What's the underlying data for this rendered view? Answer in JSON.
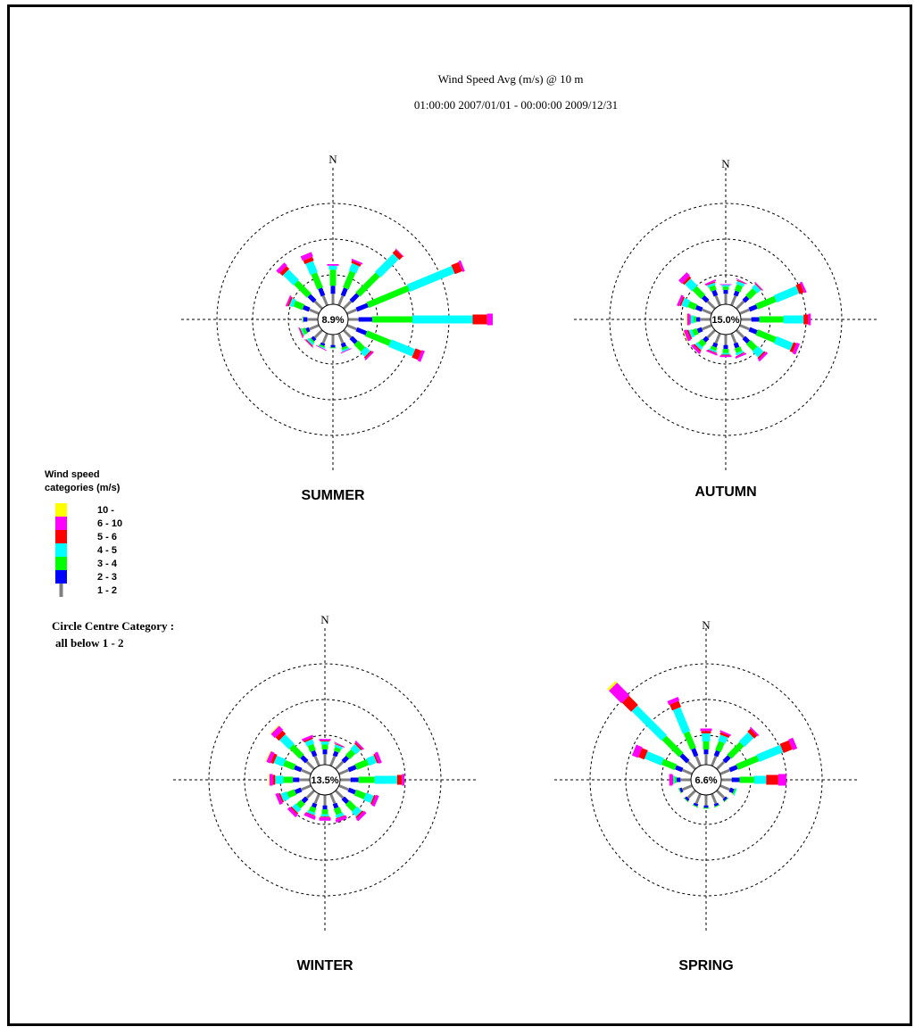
{
  "header": {
    "title": "Wind Speed Avg (m/s) @ 10 m",
    "period": "01:00:00 2007/01/01 - 00:00:00 2009/12/31"
  },
  "legend": {
    "title_line1": "Wind speed",
    "title_line2": "categories (m/s)",
    "items": [
      {
        "label": "10 -",
        "color": "#ffff00"
      },
      {
        "label": "6 - 10",
        "color": "#ff00ff"
      },
      {
        "label": "5 - 6",
        "color": "#ff0000"
      },
      {
        "label": "4 - 5",
        "color": "#00ffff"
      },
      {
        "label": "3 - 4",
        "color": "#00ff00"
      },
      {
        "label": "2 - 3",
        "color": "#0000ff"
      },
      {
        "label": "1 - 2",
        "color": "#808080"
      }
    ],
    "centre_line1": "Circle Centre Category :",
    "centre_line2": "all below 1 - 2"
  },
  "chart_data": [
    {
      "type": "wind-rose",
      "label": "SUMMER",
      "north_label": "N",
      "centre_text": "8.9%",
      "category_order": [
        "1 - 2",
        "2 - 3",
        "3 - 4",
        "4 - 5",
        "5 - 6",
        "6 - 10",
        "10 -"
      ],
      "directions_deg": [
        0,
        22.5,
        45,
        67.5,
        90,
        112.5,
        135,
        157.5,
        180,
        202.5,
        225,
        247.5,
        270,
        292.5,
        315,
        337.5
      ],
      "segments": [
        [
          1.3,
          1.0,
          2.0,
          0.5,
          0,
          0.2,
          0
        ],
        [
          1.3,
          1.0,
          2.2,
          1.0,
          0.3,
          0.2,
          0
        ],
        [
          1.3,
          1.2,
          3.5,
          3.2,
          0.6,
          0.1,
          0
        ],
        [
          1.3,
          1.5,
          5.5,
          6.0,
          1.0,
          0.3,
          0
        ],
        [
          1.3,
          1.7,
          5.0,
          7.5,
          1.8,
          0.7,
          0
        ],
        [
          1.3,
          1.3,
          3.2,
          3.2,
          0.8,
          0.4,
          0
        ],
        [
          1.3,
          0.9,
          1.2,
          0.8,
          0.2,
          0.2,
          0
        ],
        [
          1.3,
          0.5,
          0.3,
          0.2,
          0,
          0.1,
          0
        ],
        [
          1.3,
          0.3,
          0.1,
          0,
          0,
          0,
          0
        ],
        [
          1.3,
          0.3,
          0.2,
          0.1,
          0,
          0.1,
          0
        ],
        [
          1.3,
          0.4,
          0.2,
          0.3,
          0.1,
          0.1,
          0
        ],
        [
          1.3,
          0.4,
          0.4,
          0.2,
          0.1,
          0.1,
          0
        ],
        [
          1.3,
          0.5,
          0.1,
          0,
          0,
          0,
          0
        ],
        [
          1.3,
          0.8,
          1.2,
          0.5,
          0.2,
          0.2,
          0
        ],
        [
          1.3,
          1.0,
          2.3,
          1.8,
          0.5,
          0.5,
          0
        ],
        [
          1.3,
          1.0,
          2.0,
          1.5,
          0.5,
          0.6,
          0
        ]
      ]
    },
    {
      "type": "wind-rose",
      "label": "AUTUMN",
      "north_label": "N",
      "centre_text": "15.0%",
      "category_order": [
        "1 - 2",
        "2 - 3",
        "3 - 4",
        "4 - 5",
        "5 - 6",
        "6 - 10",
        "10 -"
      ],
      "directions_deg": [
        0,
        22.5,
        45,
        67.5,
        90,
        112.5,
        135,
        157.5,
        180,
        202.5,
        225,
        247.5,
        270,
        292.5,
        315,
        337.5
      ],
      "segments": [
        [
          1.3,
          0.5,
          0.4,
          0.2,
          0,
          0.1,
          0
        ],
        [
          1.3,
          0.6,
          0.8,
          0.4,
          0.1,
          0.1,
          0
        ],
        [
          1.3,
          0.7,
          1.2,
          0.6,
          0.1,
          0.1,
          0
        ],
        [
          1.3,
          1.0,
          2.5,
          3.0,
          0.6,
          0.3,
          0
        ],
        [
          1.3,
          1.0,
          3.0,
          2.5,
          0.6,
          0.3,
          0
        ],
        [
          1.3,
          1.0,
          2.5,
          2.2,
          0.4,
          0.4,
          0
        ],
        [
          1.3,
          0.8,
          1.2,
          1.0,
          0.2,
          0.3,
          0
        ],
        [
          1.3,
          0.6,
          0.6,
          0.3,
          0.1,
          0.2,
          0
        ],
        [
          1.3,
          0.5,
          0.5,
          0.2,
          0.1,
          0.2,
          0
        ],
        [
          1.3,
          0.5,
          0.4,
          0.2,
          0.1,
          0.2,
          0
        ],
        [
          1.3,
          0.6,
          0.7,
          0.4,
          0.2,
          0.3,
          0
        ],
        [
          1.3,
          0.6,
          0.6,
          0.4,
          0.2,
          0.4,
          0.1
        ],
        [
          1.3,
          0.5,
          0.3,
          0.4,
          0.1,
          0.3,
          0.1
        ],
        [
          1.3,
          0.8,
          1.0,
          0.8,
          0.2,
          0.3,
          0
        ],
        [
          1.3,
          0.8,
          1.5,
          1.2,
          0.3,
          0.6,
          0
        ],
        [
          1.3,
          0.7,
          0.6,
          0.3,
          0.1,
          0.2,
          0
        ]
      ]
    },
    {
      "type": "wind-rose",
      "label": "WINTER",
      "north_label": "N",
      "centre_text": "13.5%",
      "category_order": [
        "1 - 2",
        "2 - 3",
        "3 - 4",
        "4 - 5",
        "5 - 6",
        "6 - 10",
        "10 -"
      ],
      "directions_deg": [
        0,
        22.5,
        45,
        67.5,
        90,
        112.5,
        135,
        157.5,
        180,
        202.5,
        225,
        247.5,
        270,
        292.5,
        315,
        337.5
      ],
      "segments": [
        [
          1.3,
          0.6,
          0.6,
          0.4,
          0.1,
          0.2,
          0
        ],
        [
          1.3,
          0.6,
          0.5,
          0.3,
          0.1,
          0.1,
          0
        ],
        [
          1.3,
          0.8,
          1.0,
          0.8,
          0.2,
          0.2,
          0
        ],
        [
          1.3,
          1.0,
          1.6,
          1.0,
          0.2,
          0.4,
          0
        ],
        [
          1.3,
          1.0,
          2.0,
          2.8,
          0.6,
          0.3,
          0
        ],
        [
          1.3,
          0.9,
          1.3,
          1.0,
          0.2,
          0.4,
          0
        ],
        [
          1.3,
          0.8,
          1.2,
          0.8,
          0.2,
          0.4,
          0
        ],
        [
          1.3,
          0.6,
          0.8,
          0.4,
          0.1,
          0.4,
          0
        ],
        [
          1.3,
          0.5,
          0.6,
          0.3,
          0.1,
          0.4,
          0
        ],
        [
          1.3,
          0.5,
          0.6,
          0.3,
          0.1,
          0.4,
          0
        ],
        [
          1.3,
          0.7,
          0.8,
          0.6,
          0.2,
          0.4,
          0
        ],
        [
          1.3,
          0.8,
          1.0,
          0.8,
          0.2,
          0.4,
          0
        ],
        [
          1.3,
          0.8,
          1.2,
          1.0,
          0.3,
          0.4,
          0.1
        ],
        [
          1.3,
          0.9,
          1.4,
          1.2,
          0.4,
          0.5,
          0.1
        ],
        [
          1.3,
          0.9,
          1.8,
          1.6,
          0.6,
          0.7,
          0.1
        ],
        [
          1.3,
          0.7,
          0.8,
          0.6,
          0.2,
          0.3,
          0
        ]
      ]
    },
    {
      "type": "wind-rose",
      "label": "SPRING",
      "north_label": "N",
      "centre_text": "6.6%",
      "category_order": [
        "1 - 2",
        "2 - 3",
        "3 - 4",
        "4 - 5",
        "5 - 6",
        "6 - 10",
        "10 -"
      ],
      "directions_deg": [
        0,
        22.5,
        45,
        67.5,
        90,
        112.5,
        135,
        157.5,
        180,
        202.5,
        225,
        247.5,
        270,
        292.5,
        315,
        337.5
      ],
      "segments": [
        [
          1.3,
          0.6,
          1.0,
          1.0,
          0.3,
          0.3,
          0
        ],
        [
          1.3,
          0.7,
          1.2,
          0.8,
          0.3,
          0.2,
          0
        ],
        [
          1.3,
          0.9,
          2.2,
          1.6,
          0.5,
          0.2,
          0
        ],
        [
          1.3,
          1.0,
          2.8,
          3.2,
          1.2,
          0.6,
          0
        ],
        [
          1.3,
          1.0,
          1.8,
          1.5,
          1.5,
          1.0,
          0
        ],
        [
          1.3,
          0.5,
          0.2,
          0.1,
          0,
          0,
          0
        ],
        [
          1.3,
          0.3,
          0.1,
          0,
          0,
          0,
          0
        ],
        [
          1.3,
          0.3,
          0.1,
          0,
          0,
          0,
          0
        ],
        [
          1.3,
          0.3,
          0.1,
          0,
          0,
          0,
          0
        ],
        [
          1.3,
          0.3,
          0.1,
          0,
          0,
          0,
          0
        ],
        [
          1.3,
          0.3,
          0.1,
          0,
          0,
          0,
          0
        ],
        [
          1.3,
          0.3,
          0.1,
          0,
          0,
          0,
          0
        ],
        [
          1.3,
          0.5,
          0.2,
          0.2,
          0.1,
          0.4,
          0
        ],
        [
          1.3,
          0.9,
          1.8,
          2.2,
          0.8,
          0.8,
          0
        ],
        [
          1.3,
          1.2,
          3.0,
          5.2,
          1.6,
          2.2,
          0.3
        ],
        [
          1.3,
          1.0,
          2.2,
          3.2,
          0.8,
          0.5,
          0
        ]
      ]
    }
  ]
}
